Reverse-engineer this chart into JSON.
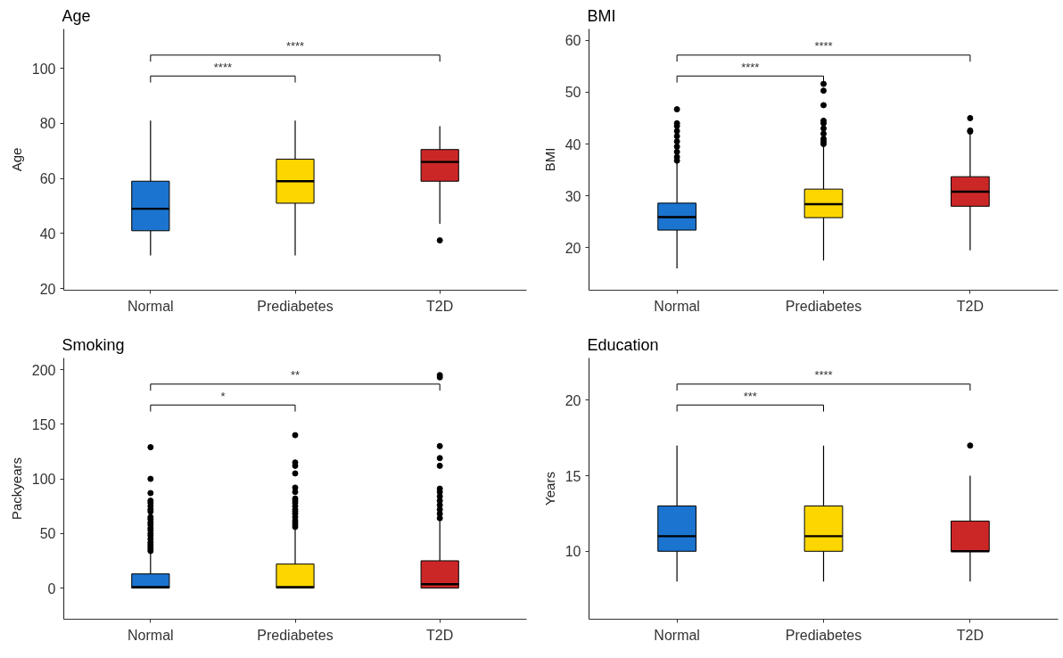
{
  "chart_data": [
    {
      "type": "box",
      "title": "Age",
      "ylabel": "Age",
      "categories": [
        "Normal",
        "Prediabetes",
        "T2D"
      ],
      "colors": [
        "#1b74cf",
        "#fdd600",
        "#cc2727"
      ],
      "ylim": [
        19.4,
        114.3
      ],
      "yticks": [
        20,
        40,
        60,
        80,
        100
      ],
      "boxes": [
        {
          "low": 32,
          "q1": 41,
          "median": 49,
          "q3": 59,
          "high": 81
        },
        {
          "low": 32,
          "q1": 51,
          "median": 59,
          "q3": 67,
          "high": 81
        },
        {
          "low": 43.5,
          "q1": 59,
          "median": 66,
          "q3": 70.5,
          "high": 79,
          "outliers": [
            37.5
          ]
        }
      ],
      "annotations": [
        "****",
        "****"
      ]
    },
    {
      "type": "box",
      "title": "BMI",
      "ylabel": "BMI",
      "categories": [
        "Normal",
        "Prediabetes",
        "T2D"
      ],
      "colors": [
        "#1b74cf",
        "#fdd600",
        "#cc2727"
      ],
      "ylim": [
        11.8,
        62.2
      ],
      "yticks": [
        20,
        30,
        40,
        50,
        60
      ],
      "boxes": [
        {
          "low": 16,
          "q1": 23.4,
          "median": 25.9,
          "q3": 28.6,
          "high": 36.5,
          "outliers": [
            36.8,
            37.5,
            38.5,
            39.5,
            40.5,
            41.5,
            42.5,
            43.5,
            44,
            46.7
          ]
        },
        {
          "low": 17.5,
          "q1": 25.8,
          "median": 28.4,
          "q3": 31.3,
          "high": 39.5,
          "outliers": [
            40,
            40.5,
            41,
            42,
            43,
            44,
            44.5,
            47.5,
            50.3,
            51.6
          ]
        },
        {
          "low": 19.5,
          "q1": 28,
          "median": 30.8,
          "q3": 33.7,
          "high": 42,
          "outliers": [
            42.4,
            42.6,
            45
          ]
        }
      ],
      "annotations": [
        "****",
        "****"
      ]
    },
    {
      "type": "box",
      "title": "Smoking",
      "ylabel": "Packyears",
      "categories": [
        "Normal",
        "Prediabetes",
        "T2D"
      ],
      "colors": [
        "#1b74cf",
        "#fdd600",
        "#cc2727"
      ],
      "ylim": [
        -28.5,
        210.7
      ],
      "yticks": [
        0,
        50,
        100,
        150,
        200
      ],
      "boxes": [
        {
          "low": 0,
          "q1": 0,
          "median": 1,
          "q3": 13,
          "high": 32,
          "outliers": [
            34,
            36,
            38,
            40,
            42,
            45,
            48,
            50,
            53,
            55,
            58,
            60,
            63,
            65,
            70,
            72,
            75,
            78,
            80,
            87,
            100,
            129
          ]
        },
        {
          "low": 0,
          "q1": 0,
          "median": 1,
          "q3": 22,
          "high": 54,
          "outliers": [
            56,
            58,
            60,
            62,
            65,
            68,
            70,
            72,
            75,
            78,
            80,
            82,
            88,
            92,
            105,
            112,
            115,
            140
          ]
        },
        {
          "low": 0,
          "q1": 0,
          "median": 3.5,
          "q3": 25,
          "high": 62,
          "outliers": [
            64,
            68,
            72,
            76,
            80,
            84,
            88,
            91,
            112,
            119,
            130,
            193,
            195
          ]
        }
      ],
      "annotations": [
        "*",
        "**"
      ]
    },
    {
      "type": "box",
      "title": "Education",
      "ylabel": "Years",
      "categories": [
        "Normal",
        "Prediabetes",
        "T2D"
      ],
      "colors": [
        "#1b74cf",
        "#fdd600",
        "#cc2727"
      ],
      "ylim": [
        5.5,
        22.8
      ],
      "yticks": [
        10,
        15,
        20
      ],
      "boxes": [
        {
          "low": 8,
          "q1": 10,
          "median": 11,
          "q3": 13,
          "high": 17
        },
        {
          "low": 8,
          "q1": 10,
          "median": 11,
          "q3": 13,
          "high": 17
        },
        {
          "low": 8,
          "q1": 10,
          "median": 10,
          "q3": 12,
          "high": 15,
          "outliers": [
            17
          ]
        }
      ],
      "annotations": [
        "***",
        "****"
      ]
    }
  ]
}
